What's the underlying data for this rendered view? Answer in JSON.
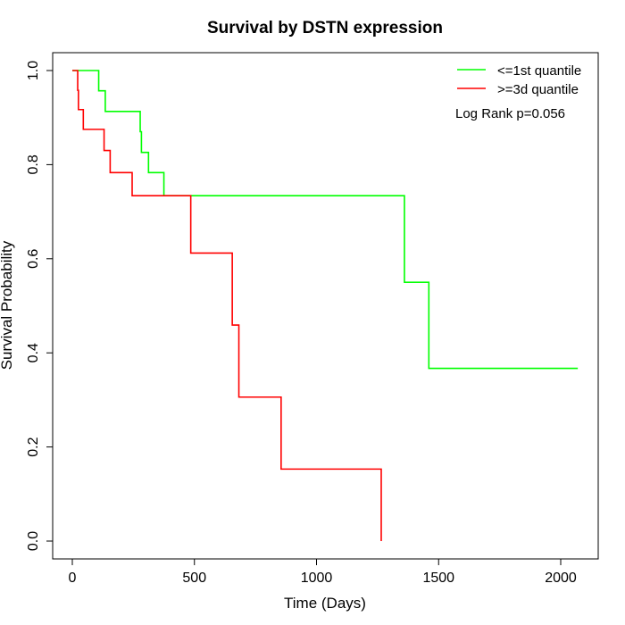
{
  "chart_data": {
    "type": "line",
    "step": true,
    "title": "Survival by DSTN expression",
    "xlabel": "Time (Days)",
    "ylabel": "Survival Probability",
    "xlim": [
      0,
      2100
    ],
    "ylim": [
      0,
      1.0
    ],
    "x_ticks": [
      0,
      500,
      1000,
      1500,
      2000
    ],
    "x_tick_labels": [
      "0",
      "500",
      "1000",
      "1500",
      "2000"
    ],
    "y_ticks": [
      0.0,
      0.2,
      0.4,
      0.6,
      0.8,
      1.0
    ],
    "y_tick_labels": [
      "0.0",
      "0.2",
      "0.4",
      "0.6",
      "0.8",
      "1.0"
    ],
    "grid": false,
    "legend_position": "top-right",
    "annotation": "Log Rank p=0.056",
    "series": [
      {
        "name": "<=1st quantile",
        "color": "#00ff00",
        "points": [
          [
            0,
            1.0
          ],
          [
            108,
            1.0
          ],
          [
            108,
            0.957
          ],
          [
            135,
            0.957
          ],
          [
            135,
            0.913
          ],
          [
            278,
            0.913
          ],
          [
            278,
            0.87
          ],
          [
            283,
            0.87
          ],
          [
            283,
            0.826
          ],
          [
            312,
            0.826
          ],
          [
            312,
            0.783
          ],
          [
            375,
            0.783
          ],
          [
            375,
            0.734
          ],
          [
            1360,
            0.734
          ],
          [
            1360,
            0.55
          ],
          [
            1460,
            0.55
          ],
          [
            1460,
            0.367
          ],
          [
            2070,
            0.367
          ]
        ]
      },
      {
        "name": ">=3d quantile",
        "color": "#ff0000",
        "points": [
          [
            0,
            1.0
          ],
          [
            22,
            1.0
          ],
          [
            22,
            0.958
          ],
          [
            25,
            0.958
          ],
          [
            25,
            0.917
          ],
          [
            45,
            0.917
          ],
          [
            45,
            0.875
          ],
          [
            130,
            0.875
          ],
          [
            130,
            0.83
          ],
          [
            155,
            0.83
          ],
          [
            155,
            0.783
          ],
          [
            245,
            0.783
          ],
          [
            245,
            0.734
          ],
          [
            485,
            0.734
          ],
          [
            485,
            0.612
          ],
          [
            655,
            0.612
          ],
          [
            655,
            0.459
          ],
          [
            682,
            0.459
          ],
          [
            682,
            0.306
          ],
          [
            855,
            0.306
          ],
          [
            855,
            0.153
          ],
          [
            1265,
            0.153
          ],
          [
            1265,
            0.0
          ]
        ]
      }
    ]
  }
}
